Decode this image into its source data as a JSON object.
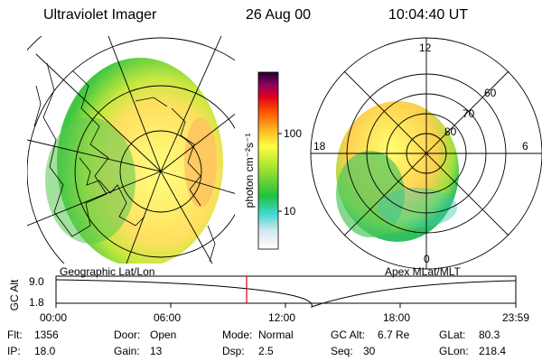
{
  "header": {
    "instrument": "Ultraviolet Imager",
    "date": "26 Aug 00",
    "time": "10:04:40 UT"
  },
  "left_panel": {
    "caption": "Geographic Lat/Lon"
  },
  "right_panel": {
    "caption": "Apex MLat/MLT",
    "mlt_labels": {
      "top": "12",
      "left": "18",
      "right": "6",
      "bottom": "0"
    },
    "mlat_labels": [
      "60",
      "70",
      "80"
    ]
  },
  "colorbar": {
    "unit_label": "photon cm⁻²s⁻¹",
    "tick_labels": [
      "100",
      "10"
    ],
    "scale": "log"
  },
  "altitude_plot": {
    "ylabel": "GC Alt",
    "y_ticks": [
      "9.0",
      "1.8"
    ],
    "x_ticks": [
      "00:00",
      "06:00",
      "12:00",
      "18:00",
      "23:59"
    ],
    "current_time_marker_color": "#e00000"
  },
  "info": {
    "row1": [
      {
        "label": "Flt:",
        "value": "1356"
      },
      {
        "label": "Door:",
        "value": "Open"
      },
      {
        "label": "Mode:",
        "value": "Normal"
      },
      {
        "label": "GC Alt:",
        "value": "6.7 Re"
      },
      {
        "label": "GLat:",
        "value": "80.3"
      }
    ],
    "row2": [
      {
        "label": "IP:",
        "value": "18.0"
      },
      {
        "label": "Gain:",
        "value": "13"
      },
      {
        "label": "Dsp:",
        "value": "2.5"
      },
      {
        "label": "Seq:",
        "value": "30"
      },
      {
        "label": "GLon:",
        "value": "218.4"
      }
    ]
  }
}
